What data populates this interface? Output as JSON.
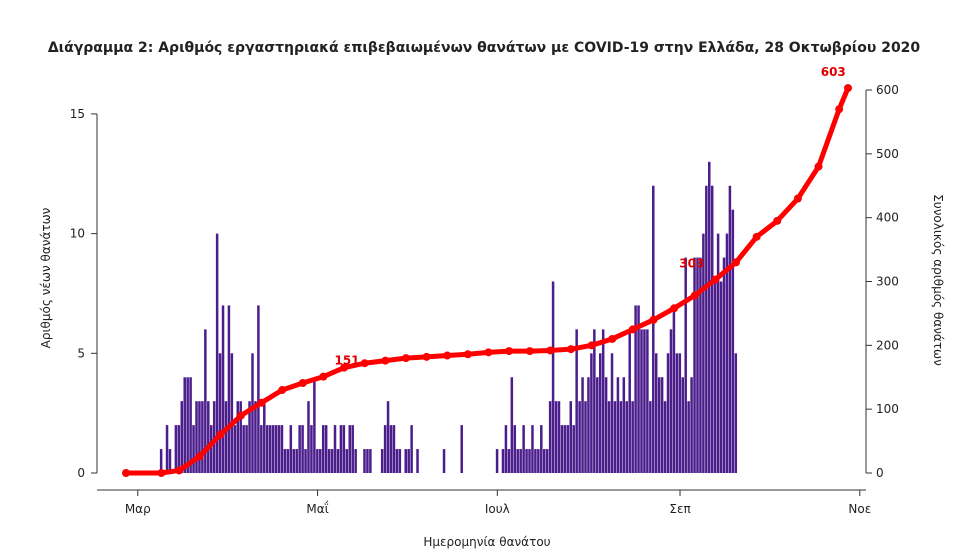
{
  "chart_data": {
    "type": "bar",
    "title": "Διάγραμμα 2: Αριθμός εργαστηριακά επιβεβαιωμένων θανάτων με COVID-19 στην Ελλάδα, 28 Οκτωβρίου 2020",
    "xlabel": "Ημερομηνία θανάτου",
    "ylabel": "Αριθμός νέων θανάτων",
    "y2label": "Συνολικός αριθμός θανάτων",
    "xlim": [
      "2020-02-26",
      "2020-10-28"
    ],
    "ylim": [
      0,
      16
    ],
    "y2lim": [
      0,
      600
    ],
    "x_ticks": [
      "2020-03-01",
      "2020-05-01",
      "2020-07-01",
      "2020-09-01",
      "2020-11-01"
    ],
    "x_tick_labels": [
      "Μαρ",
      "Μαΐ",
      "Ιουλ",
      "Σεπ",
      "Νοε"
    ],
    "y_ticks": [
      0,
      5,
      10,
      15
    ],
    "y2_ticks": [
      0,
      100,
      200,
      300,
      400,
      500,
      600
    ],
    "grid": false,
    "series": [
      {
        "type": "bar",
        "axis": "left",
        "start_date": "2020-02-26",
        "values": [
          0,
          0,
          0,
          0,
          0,
          0,
          0,
          0,
          0,
          0,
          0,
          0,
          1,
          0,
          2,
          1,
          0,
          2,
          2,
          3,
          4,
          4,
          4,
          2,
          3,
          3,
          3,
          6,
          3,
          2,
          3,
          10,
          5,
          7,
          3,
          7,
          5,
          2,
          3,
          3,
          2,
          2,
          3,
          5,
          3,
          7,
          2,
          3,
          2,
          2,
          2,
          2,
          2,
          2,
          1,
          1,
          2,
          1,
          1,
          2,
          2,
          1,
          3,
          2,
          4,
          1,
          1,
          2,
          2,
          1,
          1,
          2,
          1,
          2,
          2,
          1,
          2,
          2,
          1,
          0,
          0,
          1,
          1,
          1,
          0,
          0,
          0,
          1,
          2,
          3,
          2,
          2,
          1,
          1,
          0,
          1,
          1,
          2,
          0,
          1,
          0,
          0,
          0,
          0,
          0,
          0,
          0,
          0,
          1,
          0,
          0,
          0,
          0,
          0,
          2,
          0,
          0,
          0,
          0,
          0,
          0,
          0,
          0,
          0,
          0,
          0,
          1,
          0,
          1,
          2,
          1,
          4,
          2,
          1,
          1,
          2,
          1,
          1,
          2,
          1,
          1,
          2,
          1,
          1,
          3,
          8,
          3,
          3,
          2,
          2,
          2,
          3,
          2,
          6,
          3,
          4,
          3,
          4,
          5,
          6,
          4,
          5,
          6,
          4,
          3,
          5,
          3,
          4,
          3,
          4,
          3,
          6,
          3,
          7,
          7,
          6,
          6,
          6,
          3,
          12,
          5,
          4,
          4,
          3,
          5,
          6,
          7,
          5,
          5,
          4,
          9,
          3,
          4,
          9,
          9,
          9,
          10,
          12,
          13,
          12,
          8,
          10,
          8,
          9,
          10,
          12,
          11,
          5
        ],
        "color": "#4b1e8c"
      },
      {
        "type": "line",
        "axis": "right",
        "name": "Συνολικός αριθμός θανάτων",
        "color": "#ff0000",
        "x": [
          "2020-02-26",
          "2020-03-09",
          "2020-03-15",
          "2020-03-22",
          "2020-03-29",
          "2020-04-05",
          "2020-04-12",
          "2020-04-19",
          "2020-04-26",
          "2020-05-03",
          "2020-05-10",
          "2020-05-17",
          "2020-05-24",
          "2020-05-31",
          "2020-06-07",
          "2020-06-14",
          "2020-06-21",
          "2020-06-28",
          "2020-07-05",
          "2020-07-12",
          "2020-07-19",
          "2020-07-26",
          "2020-08-02",
          "2020-08-09",
          "2020-08-16",
          "2020-08-23",
          "2020-08-30",
          "2020-09-06",
          "2020-09-13",
          "2020-09-20",
          "2020-09-27",
          "2020-10-04",
          "2020-10-11",
          "2020-10-18",
          "2020-10-25",
          "2020-10-28"
        ],
        "y": [
          0,
          0,
          4,
          26,
          60,
          90,
          110,
          130,
          141,
          151,
          165,
          172,
          176,
          180,
          182,
          184,
          186,
          189,
          191,
          191,
          192,
          194,
          200,
          210,
          225,
          240,
          258,
          278,
          303,
          330,
          370,
          395,
          430,
          480,
          570,
          603
        ]
      }
    ],
    "annotations": [
      {
        "x": "2020-05-11",
        "y2": 151,
        "text": "151"
      },
      {
        "x": "2020-09-05",
        "y2": 303,
        "text": "303"
      },
      {
        "x": "2020-10-23",
        "y2": 603,
        "text": "603"
      }
    ]
  }
}
